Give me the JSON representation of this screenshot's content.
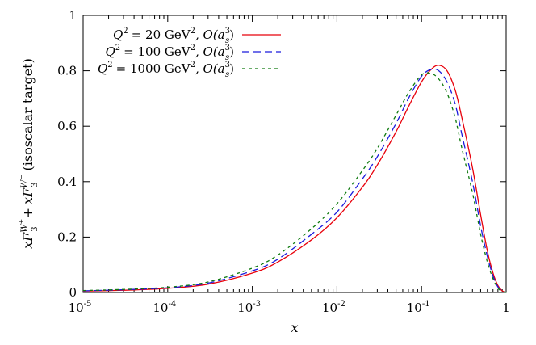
{
  "chart_data": {
    "type": "line",
    "x_scale": "log",
    "xlim": [
      1e-05,
      1
    ],
    "ylim": [
      0,
      1
    ],
    "grid": false,
    "legend_position": "top-left",
    "xlabel": "x",
    "ylabel": {
      "prefix": "xF",
      "sub": "3",
      "sup1": "W",
      "sup1_sign": "+",
      "plus": "+",
      "sup2": "W",
      "sup2_sign": "−",
      "suffix": "(isoscalar target)"
    },
    "x_ticks": [
      {
        "base": "10",
        "exp": "-5",
        "value": 1e-05
      },
      {
        "base": "10",
        "exp": "-4",
        "value": 0.0001
      },
      {
        "base": "10",
        "exp": "-3",
        "value": 0.001
      },
      {
        "base": "10",
        "exp": "-2",
        "value": 0.01
      },
      {
        "base": "10",
        "exp": "-1",
        "value": 0.1
      },
      {
        "base": "1",
        "exp": "",
        "value": 1
      }
    ],
    "y_ticks": [
      "0",
      "0.2",
      "0.4",
      "0.6",
      "0.8",
      "1"
    ],
    "series": [
      {
        "label": {
          "q": "Q",
          "q_sup": "2",
          "value": "= 20 GeV",
          "unit_sup": "2",
          "order": ", O(a",
          "order_sub": "s",
          "order_sup": "3",
          "close": ")"
        },
        "color": "#e8000b",
        "dash": "",
        "x": [
          1e-05,
          3e-05,
          0.0001,
          0.0003,
          0.001,
          0.002,
          0.005,
          0.01,
          0.02,
          0.03,
          0.05,
          0.07,
          0.1,
          0.13,
          0.16,
          0.2,
          0.25,
          0.3,
          0.4,
          0.5,
          0.6,
          0.7,
          0.8,
          0.9,
          1.0
        ],
        "y": [
          0.005,
          0.008,
          0.015,
          0.03,
          0.07,
          0.11,
          0.19,
          0.27,
          0.38,
          0.46,
          0.58,
          0.67,
          0.76,
          0.805,
          0.82,
          0.8,
          0.73,
          0.63,
          0.45,
          0.28,
          0.15,
          0.07,
          0.025,
          0.006,
          0.0
        ]
      },
      {
        "label": {
          "q": "Q",
          "q_sup": "2",
          "value": "= 100 GeV",
          "unit_sup": "2",
          "order": ", O(a",
          "order_sub": "s",
          "order_sup": "3",
          "close": ")"
        },
        "color": "#1a1adc",
        "dash": "9,5",
        "x": [
          1e-05,
          3e-05,
          0.0001,
          0.0003,
          0.001,
          0.002,
          0.005,
          0.01,
          0.02,
          0.03,
          0.05,
          0.07,
          0.1,
          0.13,
          0.16,
          0.2,
          0.25,
          0.3,
          0.4,
          0.5,
          0.6,
          0.7,
          0.8,
          0.9,
          1.0
        ],
        "y": [
          0.006,
          0.01,
          0.017,
          0.034,
          0.078,
          0.12,
          0.21,
          0.29,
          0.41,
          0.49,
          0.61,
          0.7,
          0.78,
          0.805,
          0.8,
          0.76,
          0.68,
          0.57,
          0.4,
          0.24,
          0.13,
          0.06,
          0.02,
          0.005,
          0.0
        ]
      },
      {
        "label": {
          "q": "Q",
          "q_sup": "2",
          "value": "= 1000 GeV",
          "unit_sup": "2",
          "order": ", O(a",
          "order_sub": "s",
          "order_sup": "3",
          "close": ")"
        },
        "color": "#0f7a0f",
        "dash": "4,4",
        "x": [
          1e-05,
          3e-05,
          0.0001,
          0.0003,
          0.001,
          0.002,
          0.005,
          0.01,
          0.02,
          0.03,
          0.05,
          0.07,
          0.1,
          0.13,
          0.16,
          0.2,
          0.25,
          0.3,
          0.4,
          0.5,
          0.6,
          0.7,
          0.8,
          0.9,
          1.0
        ],
        "y": [
          0.007,
          0.011,
          0.019,
          0.038,
          0.088,
          0.135,
          0.23,
          0.32,
          0.44,
          0.52,
          0.64,
          0.72,
          0.785,
          0.79,
          0.77,
          0.72,
          0.63,
          0.52,
          0.36,
          0.21,
          0.11,
          0.05,
          0.016,
          0.004,
          0.0
        ]
      }
    ]
  }
}
